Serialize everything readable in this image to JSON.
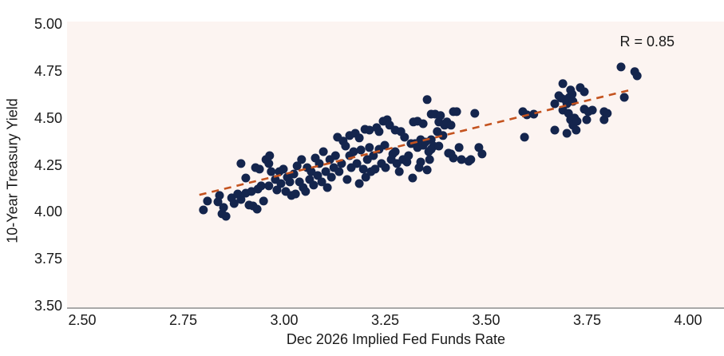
{
  "chart_data": {
    "type": "scatter",
    "title": "",
    "xlabel": "Dec 2026 Implied Fed Funds Rate",
    "ylabel": "10-Year Treasury Yield",
    "annotation": "R = 0.85",
    "xlim": [
      2.5,
      4.0
    ],
    "ylim": [
      3.5,
      5.0
    ],
    "xticks": [
      "2.50",
      "2.75",
      "3.00",
      "3.25",
      "3.50",
      "3.75",
      "4.00"
    ],
    "yticks": [
      "5.00",
      "4.75",
      "4.50",
      "4.25",
      "4.00",
      "3.75",
      "3.50"
    ],
    "grid": false,
    "legend": "none",
    "trendline": {
      "x1": 2.79,
      "y1": 4.09,
      "x2": 3.86,
      "y2": 4.65,
      "style": "dashed"
    },
    "points": [
      [
        2.8,
        4.01
      ],
      [
        2.81,
        4.057
      ],
      [
        2.836,
        4.053
      ],
      [
        2.84,
        4.087
      ],
      [
        2.846,
        3.989
      ],
      [
        2.85,
        4.023
      ],
      [
        2.856,
        3.976
      ],
      [
        2.87,
        4.074
      ],
      [
        2.876,
        4.044
      ],
      [
        2.885,
        4.095
      ],
      [
        2.893,
        4.065
      ],
      [
        2.893,
        4.257
      ],
      [
        2.905,
        4.099
      ],
      [
        2.905,
        4.18
      ],
      [
        2.913,
        4.036
      ],
      [
        2.919,
        4.108
      ],
      [
        2.923,
        4.031
      ],
      [
        2.929,
        4.235
      ],
      [
        2.933,
        4.014
      ],
      [
        2.935,
        4.121
      ],
      [
        2.939,
        4.227
      ],
      [
        2.943,
        4.138
      ],
      [
        2.949,
        4.057
      ],
      [
        2.955,
        4.278
      ],
      [
        2.962,
        4.257
      ],
      [
        2.962,
        4.138
      ],
      [
        2.964,
        4.299
      ],
      [
        2.968,
        4.214
      ],
      [
        2.978,
        4.172
      ],
      [
        2.982,
        4.116
      ],
      [
        2.988,
        4.214
      ],
      [
        2.992,
        4.15
      ],
      [
        2.998,
        4.227
      ],
      [
        3.004,
        4.108
      ],
      [
        3.008,
        4.184
      ],
      [
        3.014,
        4.159
      ],
      [
        3.018,
        4.087
      ],
      [
        3.024,
        4.201
      ],
      [
        3.028,
        4.095
      ],
      [
        3.032,
        4.244
      ],
      [
        3.038,
        4.159
      ],
      [
        3.043,
        4.278
      ],
      [
        3.047,
        4.129
      ],
      [
        3.053,
        4.108
      ],
      [
        3.057,
        4.235
      ],
      [
        3.063,
        4.172
      ],
      [
        3.067,
        4.214
      ],
      [
        3.073,
        4.142
      ],
      [
        3.077,
        4.286
      ],
      [
        3.083,
        4.193
      ],
      [
        3.087,
        4.257
      ],
      [
        3.093,
        4.159
      ],
      [
        3.097,
        4.32
      ],
      [
        3.103,
        4.214
      ],
      [
        3.107,
        4.129
      ],
      [
        3.113,
        4.278
      ],
      [
        3.117,
        4.184
      ],
      [
        3.123,
        4.235
      ],
      [
        3.127,
        4.299
      ],
      [
        3.132,
        4.397
      ],
      [
        3.136,
        4.214
      ],
      [
        3.142,
        4.257
      ],
      [
        3.146,
        4.376
      ],
      [
        3.152,
        4.35
      ],
      [
        3.156,
        4.172
      ],
      [
        3.162,
        4.299
      ],
      [
        3.162,
        4.406
      ],
      [
        3.166,
        4.235
      ],
      [
        3.172,
        4.32
      ],
      [
        3.176,
        4.418
      ],
      [
        3.18,
        4.257
      ],
      [
        3.186,
        4.15
      ],
      [
        3.186,
        4.393
      ],
      [
        3.19,
        4.329
      ],
      [
        3.196,
        4.227
      ],
      [
        3.2,
        4.439
      ],
      [
        3.202,
        4.184
      ],
      [
        3.206,
        4.278
      ],
      [
        3.211,
        4.342
      ],
      [
        3.211,
        4.435
      ],
      [
        3.215,
        4.214
      ],
      [
        3.221,
        4.299
      ],
      [
        3.225,
        4.227
      ],
      [
        3.229,
        4.448
      ],
      [
        3.235,
        4.333
      ],
      [
        3.235,
        4.427
      ],
      [
        3.241,
        4.257
      ],
      [
        3.245,
        4.482
      ],
      [
        3.249,
        4.354
      ],
      [
        3.251,
        4.235
      ],
      [
        3.255,
        4.49
      ],
      [
        3.261,
        4.461
      ],
      [
        3.265,
        4.278
      ],
      [
        3.269,
        4.308
      ],
      [
        3.275,
        4.32
      ],
      [
        3.275,
        4.435
      ],
      [
        3.279,
        4.257
      ],
      [
        3.285,
        4.214
      ],
      [
        3.289,
        4.427
      ],
      [
        3.294,
        4.278
      ],
      [
        3.298,
        4.397
      ],
      [
        3.304,
        4.265
      ],
      [
        3.308,
        4.299
      ],
      [
        3.314,
        4.363
      ],
      [
        3.318,
        4.18
      ],
      [
        3.32,
        4.478
      ],
      [
        3.324,
        4.363
      ],
      [
        3.33,
        4.342
      ],
      [
        3.33,
        4.482
      ],
      [
        3.334,
        4.235
      ],
      [
        3.338,
        4.265
      ],
      [
        3.338,
        4.384
      ],
      [
        3.344,
        4.354
      ],
      [
        3.344,
        4.469
      ],
      [
        3.35,
        4.371
      ],
      [
        3.354,
        4.597
      ],
      [
        3.354,
        4.223
      ],
      [
        3.358,
        4.32
      ],
      [
        3.36,
        4.278
      ],
      [
        3.364,
        4.52
      ],
      [
        3.364,
        4.384
      ],
      [
        3.364,
        4.333
      ],
      [
        3.37,
        4.35
      ],
      [
        3.374,
        4.52
      ],
      [
        3.379,
        4.427
      ],
      [
        3.383,
        4.35
      ],
      [
        3.383,
        4.478
      ],
      [
        3.387,
        4.512
      ],
      [
        3.393,
        4.406
      ],
      [
        3.397,
        4.461
      ],
      [
        3.403,
        4.478
      ],
      [
        3.407,
        4.312
      ],
      [
        3.413,
        4.308
      ],
      [
        3.413,
        4.461
      ],
      [
        3.419,
        4.533
      ],
      [
        3.419,
        4.286
      ],
      [
        3.427,
        4.533
      ],
      [
        3.433,
        4.342
      ],
      [
        3.439,
        4.278
      ],
      [
        3.457,
        4.269
      ],
      [
        3.462,
        4.278
      ],
      [
        3.472,
        4.524
      ],
      [
        3.482,
        4.342
      ],
      [
        3.49,
        4.308
      ],
      [
        3.591,
        4.533
      ],
      [
        3.601,
        4.516
      ],
      [
        3.595,
        4.397
      ],
      [
        3.618,
        4.52
      ],
      [
        3.67,
        4.575
      ],
      [
        3.67,
        4.435
      ],
      [
        3.68,
        4.618
      ],
      [
        3.686,
        4.605
      ],
      [
        3.69,
        4.682
      ],
      [
        3.69,
        4.541
      ],
      [
        3.696,
        4.597
      ],
      [
        3.7,
        4.575
      ],
      [
        3.7,
        4.418
      ],
      [
        3.704,
        4.524
      ],
      [
        3.706,
        4.609
      ],
      [
        3.709,
        4.648
      ],
      [
        3.709,
        4.49
      ],
      [
        3.713,
        4.626
      ],
      [
        3.715,
        4.588
      ],
      [
        3.715,
        4.461
      ],
      [
        3.719,
        4.499
      ],
      [
        3.723,
        4.435
      ],
      [
        3.725,
        4.482
      ],
      [
        3.733,
        4.661
      ],
      [
        3.743,
        4.639
      ],
      [
        3.743,
        4.546
      ],
      [
        3.749,
        4.49
      ],
      [
        3.753,
        4.533
      ],
      [
        3.763,
        4.541
      ],
      [
        3.792,
        4.533
      ],
      [
        3.792,
        4.49
      ],
      [
        3.8,
        4.524
      ],
      [
        3.834,
        4.771
      ],
      [
        3.842,
        4.609
      ],
      [
        3.868,
        4.746
      ],
      [
        3.874,
        4.724
      ]
    ]
  },
  "colors": {
    "point": "#14254d",
    "trend": "#c4531f",
    "plot_bg": "#fcf4f1",
    "page_bg": "#ffffff",
    "axis_line": "#a9a9a9",
    "text": "#1a1a1a"
  }
}
